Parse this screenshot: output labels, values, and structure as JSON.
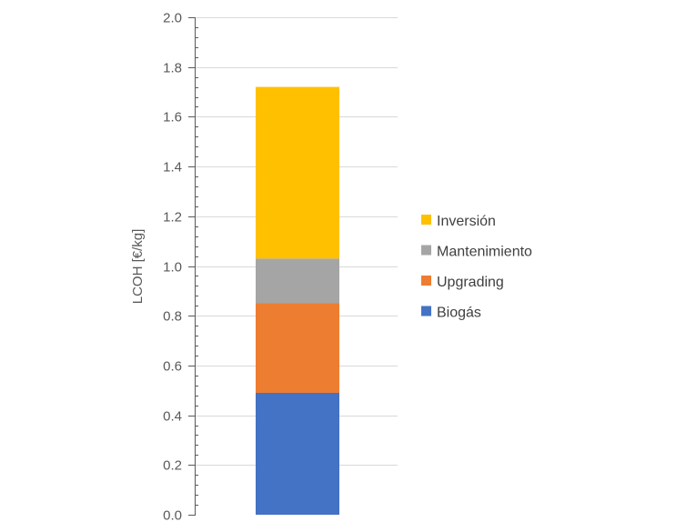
{
  "chart_data": {
    "type": "bar",
    "stacked": true,
    "categories": [
      ""
    ],
    "ylabel": "LCOH [€/kg]",
    "ylim": [
      0,
      2.0
    ],
    "ytick_step": 0.2,
    "ytick_labels": [
      "0.0",
      "0.2",
      "0.4",
      "0.6",
      "0.8",
      "1.0",
      "1.2",
      "1.4",
      "1.6",
      "1.8",
      "2.0"
    ],
    "grid": true,
    "legend_position": "right",
    "series": [
      {
        "name": "Biogás",
        "values": [
          0.49
        ],
        "color": "#4472C4"
      },
      {
        "name": "Upgrading",
        "values": [
          0.36
        ],
        "color": "#ED7D31"
      },
      {
        "name": "Mantenimiento",
        "values": [
          0.18
        ],
        "color": "#A5A5A5"
      },
      {
        "name": "Inversión",
        "values": [
          0.69
        ],
        "color": "#FFC000"
      }
    ]
  }
}
